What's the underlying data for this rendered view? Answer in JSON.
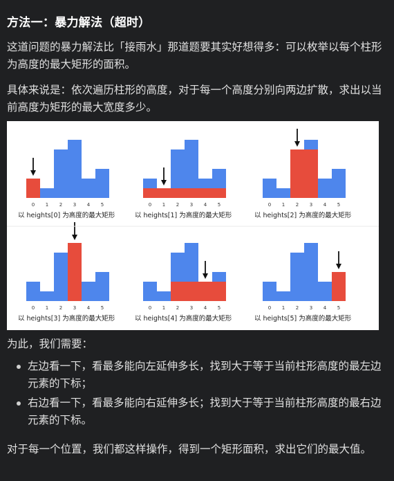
{
  "heading": "方法一：暴力解法（超时）",
  "paragraphs": {
    "intro": "这道问题的暴力解法比「接雨水」那道题要其实好想得多：可以枚举以每个柱形为高度的最大矩形的面积。",
    "detail": "具体来说是：依次遍历柱形的高度，对于每一个高度分别向两边扩散，求出以当前高度为矩形的最大宽度多少。",
    "need": "为此，我们需要：",
    "conclusion": "对于每一个位置，我们都这样操作，得到一个矩形面积，求出它们的最大值。"
  },
  "bullets": [
    "左边看一下，看最多能向左延伸多长，找到大于等于当前柱形高度的最左边元素的下标；",
    "右边看一下，看最多能向右延伸多长；找到大于等于当前柱形高度的最右边元素的下标。"
  ],
  "figure": {
    "heights": [
      2,
      1,
      5,
      6,
      2,
      3
    ],
    "x_ticks": [
      "0",
      "1",
      "2",
      "3",
      "4",
      "5"
    ],
    "captions": [
      "以 heights[0] 为高度的最大矩形",
      "以 heights[1] 为高度的最大矩形",
      "以 heights[2] 为高度的最大矩形",
      "以 heights[3] 为高度的最大矩形",
      "以 heights[4] 为高度的最大矩形",
      "以 heights[5] 为高度的最大矩形"
    ],
    "colors": {
      "bar": "#4e86ec",
      "highlight": "#e74c3c",
      "arrow": "#111111"
    }
  }
}
